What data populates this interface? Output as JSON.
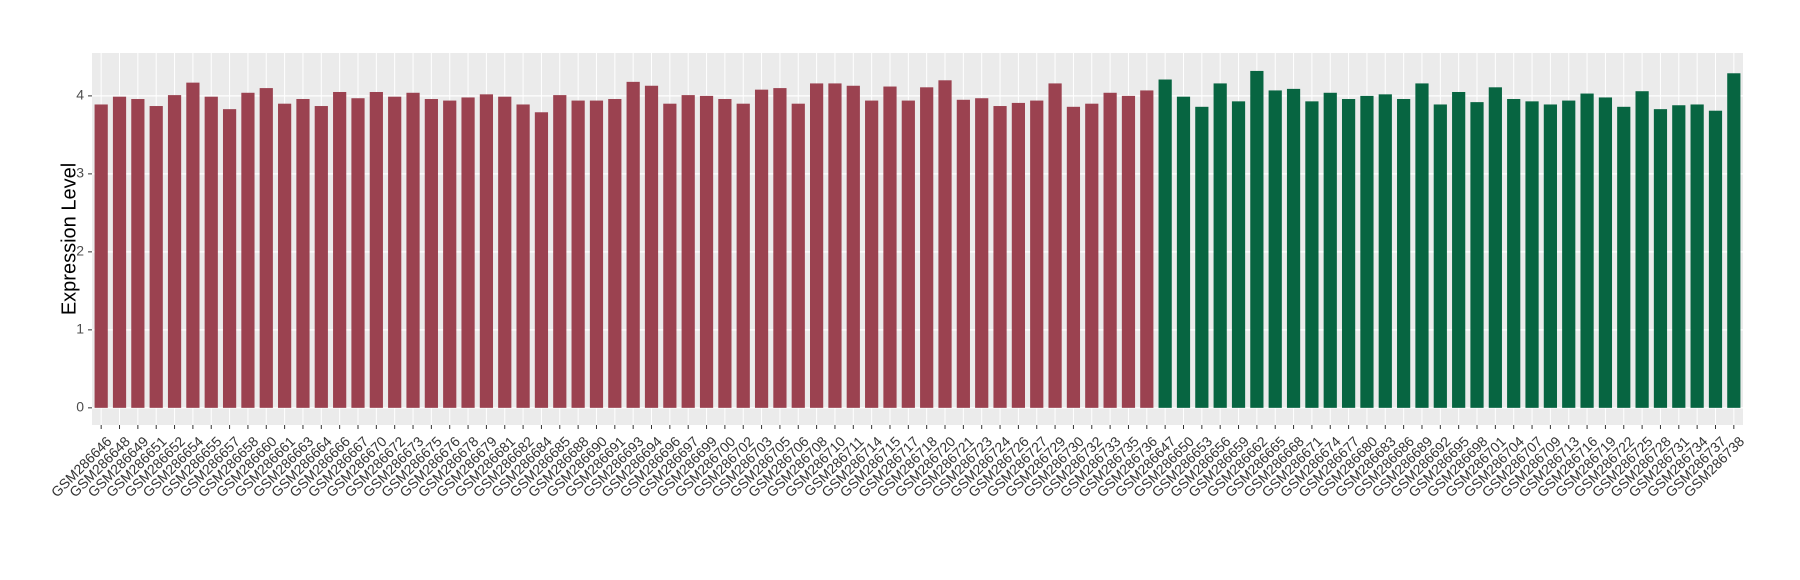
{
  "chart_data": {
    "type": "bar",
    "y_label": "Expression Level",
    "categories": [
      "GSM286646",
      "GSM286648",
      "GSM286649",
      "GSM286651",
      "GSM286652",
      "GSM286654",
      "GSM286655",
      "GSM286657",
      "GSM286658",
      "GSM286660",
      "GSM286661",
      "GSM286663",
      "GSM286664",
      "GSM286666",
      "GSM286667",
      "GSM286670",
      "GSM286672",
      "GSM286673",
      "GSM286675",
      "GSM286676",
      "GSM286678",
      "GSM286679",
      "GSM286681",
      "GSM286682",
      "GSM286684",
      "GSM286685",
      "GSM286688",
      "GSM286690",
      "GSM286691",
      "GSM286693",
      "GSM286694",
      "GSM286696",
      "GSM286697",
      "GSM286699",
      "GSM286700",
      "GSM286702",
      "GSM286703",
      "GSM286705",
      "GSM286706",
      "GSM286708",
      "GSM286710",
      "GSM286711",
      "GSM286714",
      "GSM286715",
      "GSM286717",
      "GSM286718",
      "GSM286720",
      "GSM286721",
      "GSM286723",
      "GSM286724",
      "GSM286726",
      "GSM286727",
      "GSM286729",
      "GSM286730",
      "GSM286732",
      "GSM286733",
      "GSM286735",
      "GSM286736",
      "GSM286647",
      "GSM286650",
      "GSM286653",
      "GSM286656",
      "GSM286659",
      "GSM286662",
      "GSM286665",
      "GSM286668",
      "GSM286671",
      "GSM286674",
      "GSM286677",
      "GSM286680",
      "GSM286683",
      "GSM286686",
      "GSM286689",
      "GSM286692",
      "GSM286695",
      "GSM286698",
      "GSM286701",
      "GSM286704",
      "GSM286707",
      "GSM286709",
      "GSM286713",
      "GSM286716",
      "GSM286719",
      "GSM286722",
      "GSM286725",
      "GSM286728",
      "GSM286731",
      "GSM286734",
      "GSM286737",
      "GSM286738"
    ],
    "values": [
      3.89,
      3.99,
      3.96,
      3.87,
      4.01,
      4.17,
      3.99,
      3.83,
      4.04,
      4.1,
      3.9,
      3.96,
      3.87,
      4.05,
      3.97,
      4.05,
      3.99,
      4.04,
      3.96,
      3.94,
      3.98,
      4.02,
      3.99,
      3.89,
      3.79,
      4.01,
      3.94,
      3.94,
      3.96,
      4.18,
      4.13,
      3.9,
      4.01,
      4.0,
      3.96,
      3.9,
      4.08,
      4.1,
      3.9,
      4.16,
      4.16,
      4.13,
      3.94,
      4.12,
      3.94,
      4.11,
      4.2,
      3.95,
      3.97,
      3.87,
      3.91,
      3.94,
      4.16,
      3.86,
      3.9,
      4.04,
      4.0,
      4.07,
      4.21,
      3.99,
      3.86,
      4.16,
      3.93,
      4.32,
      4.07,
      4.09,
      3.93,
      4.04,
      3.96,
      4.0,
      4.02,
      3.96,
      4.16,
      3.89,
      4.05,
      3.92,
      4.11,
      3.96,
      3.93,
      3.89,
      3.94,
      4.03,
      3.98,
      3.86,
      4.06,
      3.83,
      3.88,
      3.89,
      3.81,
      4.29
    ],
    "colors": [
      "#9b4250",
      "#9b4250",
      "#9b4250",
      "#9b4250",
      "#9b4250",
      "#9b4250",
      "#9b4250",
      "#9b4250",
      "#9b4250",
      "#9b4250",
      "#9b4250",
      "#9b4250",
      "#9b4250",
      "#9b4250",
      "#9b4250",
      "#9b4250",
      "#9b4250",
      "#9b4250",
      "#9b4250",
      "#9b4250",
      "#9b4250",
      "#9b4250",
      "#9b4250",
      "#9b4250",
      "#9b4250",
      "#9b4250",
      "#9b4250",
      "#9b4250",
      "#9b4250",
      "#9b4250",
      "#9b4250",
      "#9b4250",
      "#9b4250",
      "#9b4250",
      "#9b4250",
      "#9b4250",
      "#9b4250",
      "#9b4250",
      "#9b4250",
      "#9b4250",
      "#9b4250",
      "#9b4250",
      "#9b4250",
      "#9b4250",
      "#9b4250",
      "#9b4250",
      "#9b4250",
      "#9b4250",
      "#9b4250",
      "#9b4250",
      "#9b4250",
      "#9b4250",
      "#9b4250",
      "#9b4250",
      "#9b4250",
      "#9b4250",
      "#9b4250",
      "#9b4250",
      "#076541",
      "#076541",
      "#076541",
      "#076541",
      "#076541",
      "#076541",
      "#076541",
      "#076541",
      "#076541",
      "#076541",
      "#076541",
      "#076541",
      "#076541",
      "#076541",
      "#076541",
      "#076541",
      "#076541",
      "#076541",
      "#076541",
      "#076541",
      "#076541",
      "#076541",
      "#076541",
      "#076541",
      "#076541",
      "#076541",
      "#076541",
      "#076541",
      "#076541",
      "#076541",
      "#076541",
      "#076541"
    ],
    "ylim": [
      -0.22,
      4.55
    ],
    "yticks": [
      0,
      1,
      2,
      3,
      4
    ],
    "grid": true
  }
}
